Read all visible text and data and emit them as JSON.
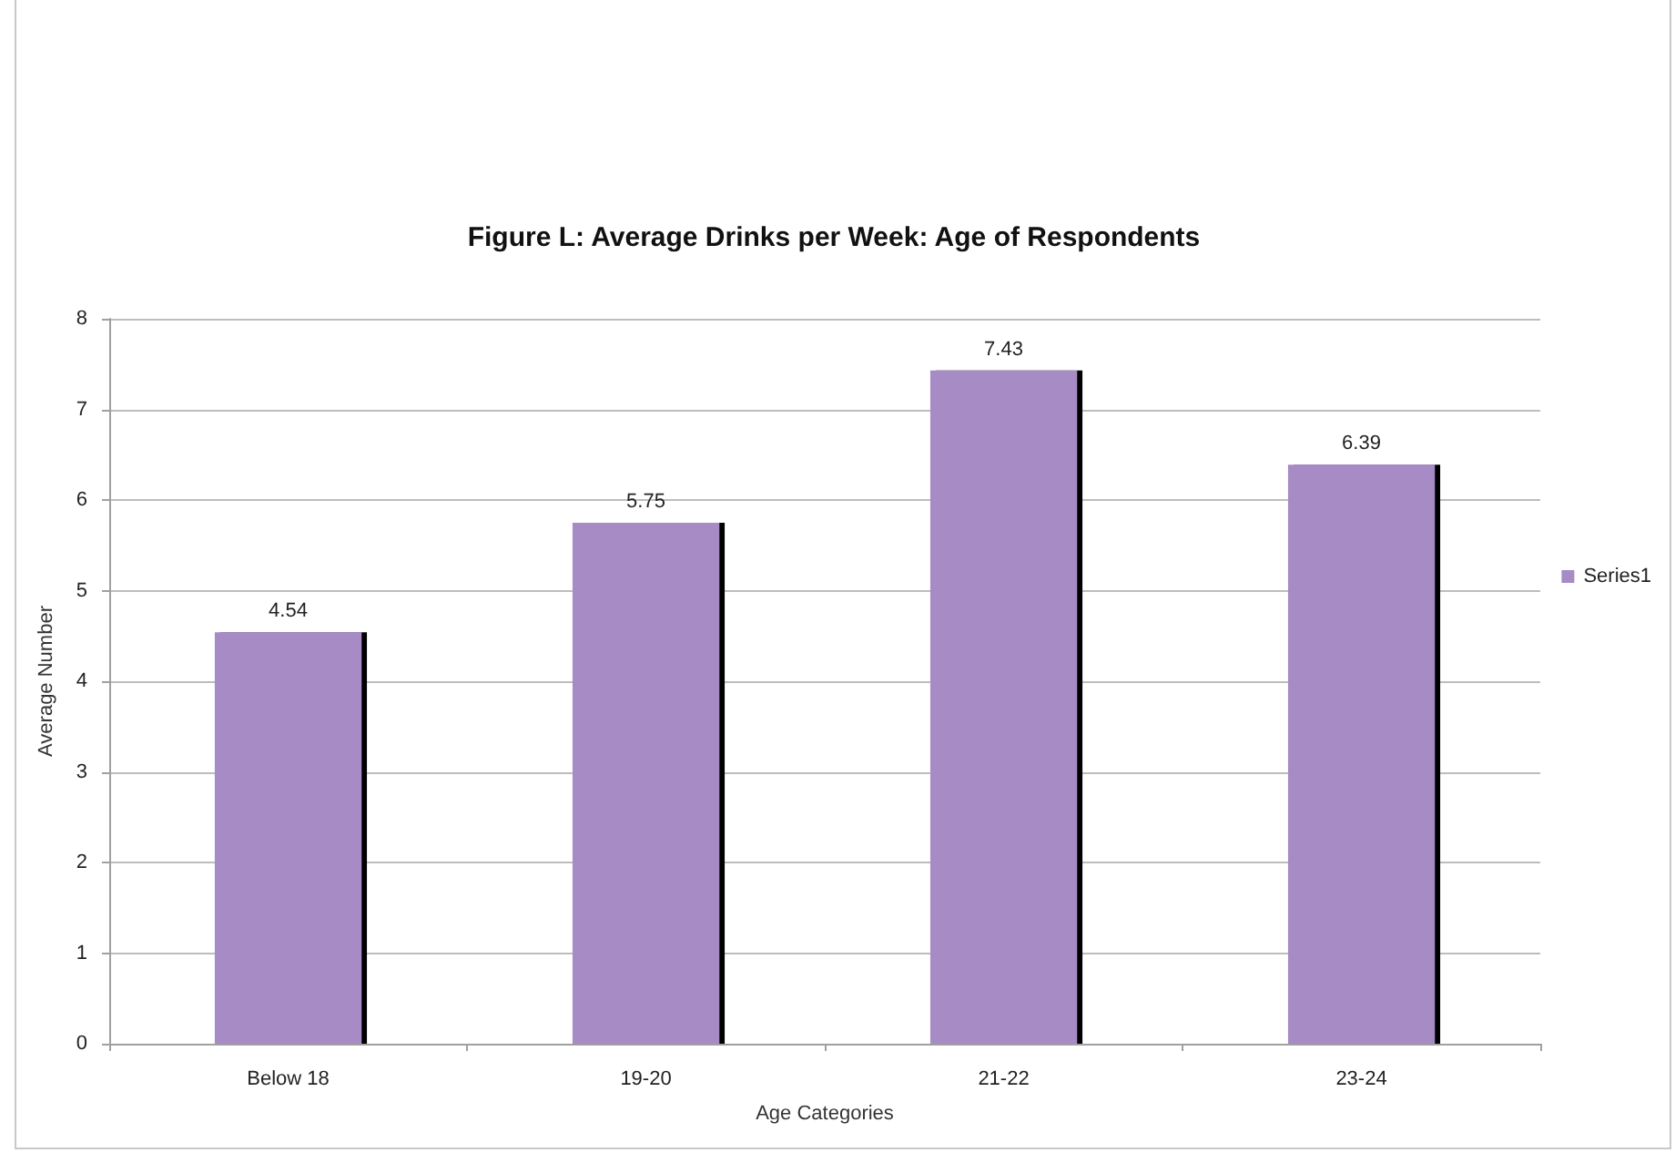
{
  "chart_data": {
    "type": "bar",
    "title": "Figure L: Average Drinks per Week: Age of Respondents",
    "xlabel": "Age Categories",
    "ylabel": "Average Number",
    "categories": [
      "Below 18",
      "19-20",
      "21-22",
      "23-24"
    ],
    "series": [
      {
        "name": "Series1",
        "color": "#a68bc4",
        "values": [
          4.54,
          5.75,
          7.43,
          6.39
        ]
      }
    ],
    "ylim": [
      0,
      8
    ],
    "yticks": [
      0,
      1,
      2,
      3,
      4,
      5,
      6,
      7,
      8
    ],
    "grid": "y",
    "legend": "right",
    "data_labels": true
  }
}
